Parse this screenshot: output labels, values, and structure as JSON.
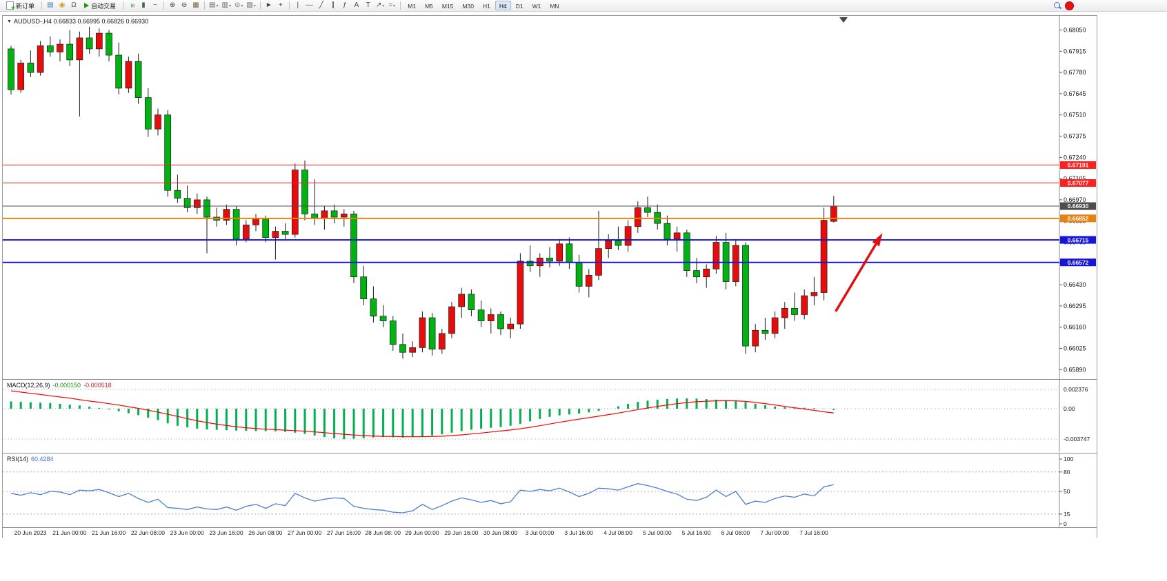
{
  "toolbar": {
    "new_order_label": "新订单",
    "auto_trading_label": "自动交易",
    "timeframes": [
      "M1",
      "M5",
      "M15",
      "M30",
      "H1",
      "H4",
      "D1",
      "W1",
      "MN"
    ],
    "active_timeframe": "H4",
    "icons_a": [
      {
        "name": "market-depth-icon",
        "glyph": "▤",
        "color": "#4a7ab5"
      },
      {
        "name": "alerts-icon",
        "glyph": "◉",
        "color": "#c9a227"
      },
      {
        "name": "headset-icon",
        "glyph": "Ω",
        "color": "#555555"
      }
    ],
    "icons_b": [
      {
        "sep": true
      },
      {
        "name": "bar-chart-mode-icon",
        "glyph": "≡",
        "rot": true,
        "color": "#3c7a3c"
      },
      {
        "name": "candlestick-mode-icon",
        "glyph": "▮",
        "color": "#3c6e3c"
      },
      {
        "name": "line-chart-mode-icon",
        "glyph": "~",
        "color": "#3c6e3c"
      },
      {
        "sep": true
      },
      {
        "name": "zoom-in-icon",
        "glyph": "⊕",
        "color": "#444444"
      },
      {
        "name": "zoom-out-icon",
        "glyph": "⊖",
        "color": "#444444"
      },
      {
        "name": "tile-windows-icon",
        "glyph": "▦",
        "color": "#7a6a3a"
      },
      {
        "sep": true
      },
      {
        "name": "new-chart-icon",
        "glyph": "▤",
        "color": "#666666",
        "dropdown": true
      },
      {
        "name": "profiles-icon",
        "glyph": "▥",
        "color": "#666666",
        "dropdown": true
      },
      {
        "name": "period-sync-icon",
        "glyph": "⊙",
        "color": "#666666",
        "dropdown": true
      },
      {
        "name": "templates-icon",
        "glyph": "▧",
        "color": "#666666",
        "dropdown": true
      },
      {
        "sep": true
      },
      {
        "name": "cursor-icon",
        "glyph": "►",
        "color": "#444444"
      },
      {
        "name": "crosshair-icon",
        "glyph": "+",
        "color": "#444444"
      },
      {
        "sep": true
      },
      {
        "name": "vertical-line-icon",
        "glyph": "|",
        "color": "#444444"
      },
      {
        "name": "horizontal-line-icon",
        "glyph": "—",
        "color": "#444444"
      },
      {
        "name": "trendline-icon",
        "glyph": "╱",
        "color": "#444444"
      },
      {
        "name": "channel-icon",
        "glyph": "∥",
        "color": "#444444"
      },
      {
        "name": "fibonacci-icon",
        "glyph": "ƒ",
        "color": "#444444"
      },
      {
        "name": "text-icon",
        "glyph": "A",
        "color": "#444444"
      },
      {
        "name": "label-icon",
        "glyph": "T",
        "color": "#444444"
      },
      {
        "name": "arrows-tool-icon",
        "glyph": "↗",
        "color": "#444444",
        "dropdown": true
      },
      {
        "name": "indicators-icon",
        "glyph": "≈",
        "color": "#2a8a2a",
        "dropdown": true
      },
      {
        "sep": true
      }
    ]
  },
  "chart_data": {
    "type": "candlestick+indicators",
    "main": {
      "title": "AUDUSD-,H4 0.66833 0.66995 0.66826 0.66930",
      "symbol": "AUDUSD",
      "timeframe": "H4",
      "ohlc_last": {
        "open": "0.66833",
        "high": "0.66995",
        "low": "0.66826",
        "close": "0.66930"
      },
      "ylim": [
        0.6583,
        0.6814
      ],
      "y_ticks": [
        "0.68050",
        "0.67915",
        "0.67780",
        "0.67645",
        "0.67510",
        "0.67375",
        "0.67240",
        "0.67105",
        "0.66970",
        "0.66835",
        "0.66700",
        "0.66565",
        "0.66430",
        "0.66295",
        "0.66160",
        "0.66025",
        "0.65890"
      ],
      "colors": {
        "bull": "#e60d0d",
        "bear": "#00b313",
        "bull_note": "chinese convention: red = up",
        "bear_note": "green = down"
      },
      "hlines": [
        {
          "price": 0.67191,
          "label": "0.67191",
          "color": "#ff2020",
          "width": 1
        },
        {
          "price": 0.67077,
          "label": "0.67077",
          "color": "#ff2020",
          "width": 1
        },
        {
          "price": 0.6693,
          "label": "0.66930",
          "color": "#4d4d4d",
          "width": 1
        },
        {
          "price": 0.66852,
          "label": "0.66852",
          "color": "#e8820e",
          "width": 2
        },
        {
          "price": 0.66715,
          "label": "0.66715",
          "color": "#1515dd",
          "width": 2
        },
        {
          "price": 0.66572,
          "label": "0.66572",
          "color": "#1515dd",
          "width": 2
        }
      ],
      "arrow": {
        "from_bar": 84.2,
        "from_price": 0.6626,
        "to_bar": 88.8,
        "to_price": 0.6674,
        "color": "#e01010"
      },
      "candles": [
        [
          0.6793,
          0.6795,
          0.6764,
          0.6767
        ],
        [
          0.6767,
          0.6786,
          0.6765,
          0.6784
        ],
        [
          0.6784,
          0.6792,
          0.6775,
          0.6778
        ],
        [
          0.6778,
          0.6798,
          0.6776,
          0.6795
        ],
        [
          0.6795,
          0.6801,
          0.6788,
          0.6791
        ],
        [
          0.6791,
          0.6799,
          0.6785,
          0.6796
        ],
        [
          0.6796,
          0.6805,
          0.6782,
          0.6786
        ],
        [
          0.6786,
          0.6804,
          0.675,
          0.68
        ],
        [
          0.68,
          0.6807,
          0.679,
          0.6793
        ],
        [
          0.6793,
          0.6806,
          0.6788,
          0.6803
        ],
        [
          0.6803,
          0.6805,
          0.6785,
          0.6789
        ],
        [
          0.6789,
          0.6797,
          0.6764,
          0.6768
        ],
        [
          0.6768,
          0.6788,
          0.6765,
          0.6785
        ],
        [
          0.6785,
          0.679,
          0.6758,
          0.6762
        ],
        [
          0.6762,
          0.6768,
          0.6737,
          0.6742
        ],
        [
          0.6742,
          0.6755,
          0.6738,
          0.6751
        ],
        [
          0.6751,
          0.6754,
          0.6699,
          0.6703
        ],
        [
          0.6703,
          0.6713,
          0.6695,
          0.6698
        ],
        [
          0.6698,
          0.6706,
          0.6689,
          0.6692
        ],
        [
          0.6692,
          0.6701,
          0.6688,
          0.6697
        ],
        [
          0.6697,
          0.6699,
          0.6663,
          0.6686
        ],
        [
          0.6686,
          0.6692,
          0.668,
          0.6684
        ],
        [
          0.6684,
          0.6694,
          0.6681,
          0.6691
        ],
        [
          0.6691,
          0.6693,
          0.6668,
          0.6672
        ],
        [
          0.6672,
          0.6684,
          0.667,
          0.6681
        ],
        [
          0.6681,
          0.6688,
          0.6677,
          0.6685
        ],
        [
          0.6685,
          0.6687,
          0.667,
          0.6673
        ],
        [
          0.6673,
          0.668,
          0.6659,
          0.6677
        ],
        [
          0.6677,
          0.6682,
          0.6672,
          0.6675
        ],
        [
          0.6675,
          0.672,
          0.6673,
          0.6716
        ],
        [
          0.6716,
          0.6722,
          0.6684,
          0.6688
        ],
        [
          0.6688,
          0.671,
          0.6681,
          0.6685
        ],
        [
          0.6685,
          0.6693,
          0.6678,
          0.669
        ],
        [
          0.669,
          0.6694,
          0.6682,
          0.6686
        ],
        [
          0.6686,
          0.6691,
          0.668,
          0.6688
        ],
        [
          0.6688,
          0.669,
          0.6644,
          0.6648
        ],
        [
          0.6648,
          0.6655,
          0.663,
          0.6634
        ],
        [
          0.6634,
          0.6642,
          0.6619,
          0.6623
        ],
        [
          0.6623,
          0.663,
          0.6616,
          0.662
        ],
        [
          0.662,
          0.6623,
          0.6601,
          0.6605
        ],
        [
          0.6605,
          0.6612,
          0.6596,
          0.66
        ],
        [
          0.66,
          0.6607,
          0.6597,
          0.6603
        ],
        [
          0.6603,
          0.6626,
          0.66,
          0.6622
        ],
        [
          0.6622,
          0.6625,
          0.6598,
          0.6602
        ],
        [
          0.6602,
          0.6615,
          0.6599,
          0.6612
        ],
        [
          0.6612,
          0.6632,
          0.6609,
          0.6629
        ],
        [
          0.6629,
          0.6641,
          0.6622,
          0.6637
        ],
        [
          0.6637,
          0.664,
          0.6623,
          0.6627
        ],
        [
          0.6627,
          0.6633,
          0.6616,
          0.662
        ],
        [
          0.662,
          0.6628,
          0.6612,
          0.6624
        ],
        [
          0.6624,
          0.6626,
          0.6611,
          0.6615
        ],
        [
          0.6615,
          0.6622,
          0.6609,
          0.6618
        ],
        [
          0.6618,
          0.6663,
          0.6615,
          0.6658
        ],
        [
          0.6658,
          0.6668,
          0.6651,
          0.6655
        ],
        [
          0.6655,
          0.6663,
          0.6648,
          0.666
        ],
        [
          0.666,
          0.6667,
          0.6654,
          0.6658
        ],
        [
          0.6658,
          0.6672,
          0.6655,
          0.6669
        ],
        [
          0.6669,
          0.6673,
          0.6653,
          0.6657
        ],
        [
          0.6657,
          0.6662,
          0.6638,
          0.6642
        ],
        [
          0.6642,
          0.6653,
          0.6635,
          0.6649
        ],
        [
          0.6649,
          0.669,
          0.6646,
          0.6666
        ],
        [
          0.6666,
          0.6675,
          0.666,
          0.6671
        ],
        [
          0.6671,
          0.668,
          0.6665,
          0.6668
        ],
        [
          0.6668,
          0.6684,
          0.6664,
          0.668
        ],
        [
          0.668,
          0.6696,
          0.6676,
          0.6692
        ],
        [
          0.6692,
          0.6699,
          0.6686,
          0.6689
        ],
        [
          0.6689,
          0.6694,
          0.6678,
          0.6682
        ],
        [
          0.6682,
          0.6687,
          0.6668,
          0.6672
        ],
        [
          0.6672,
          0.668,
          0.6664,
          0.6676
        ],
        [
          0.6676,
          0.6678,
          0.6648,
          0.6652
        ],
        [
          0.6652,
          0.666,
          0.6644,
          0.6648
        ],
        [
          0.6648,
          0.6656,
          0.6641,
          0.6653
        ],
        [
          0.6653,
          0.6674,
          0.665,
          0.667
        ],
        [
          0.667,
          0.6676,
          0.664,
          0.6645
        ],
        [
          0.6645,
          0.6672,
          0.6642,
          0.6668
        ],
        [
          0.6668,
          0.667,
          0.6599,
          0.6604
        ],
        [
          0.6604,
          0.6618,
          0.66,
          0.6614
        ],
        [
          0.6614,
          0.6622,
          0.6608,
          0.6612
        ],
        [
          0.6612,
          0.6626,
          0.6609,
          0.6622
        ],
        [
          0.6622,
          0.6632,
          0.6615,
          0.6628
        ],
        [
          0.6628,
          0.6638,
          0.662,
          0.6624
        ],
        [
          0.6624,
          0.664,
          0.6621,
          0.6636
        ],
        [
          0.6636,
          0.6648,
          0.663,
          0.6638
        ],
        [
          0.6638,
          0.6692,
          0.6633,
          0.6684
        ],
        [
          0.66833,
          0.66995,
          0.66826,
          0.6693
        ]
      ]
    },
    "macd": {
      "label": "MACD(12,26,9)",
      "main_value": "-0.000150",
      "signal_value": "-0.000518",
      "y_ticks": [
        "0.002376",
        "0.00",
        "-0.003747"
      ],
      "ylim": [
        -0.00543,
        0.00357
      ],
      "hist_color": "#00b050",
      "signal_color": "#ff0000",
      "histogram": [
        0.0009,
        0.00085,
        0.0008,
        0.00075,
        0.0007,
        0.0006,
        0.0005,
        0.0004,
        0.00025,
        0.0001,
        -0.0001,
        -0.0003,
        -0.00055,
        -0.0008,
        -0.0011,
        -0.0014,
        -0.0018,
        -0.0021,
        -0.0023,
        -0.00245,
        -0.00255,
        -0.0026,
        -0.00265,
        -0.0027,
        -0.00272,
        -0.00274,
        -0.00276,
        -0.00278,
        -0.00285,
        -0.00295,
        -0.0031,
        -0.0033,
        -0.0035,
        -0.00365,
        -0.003747,
        -0.0037,
        -0.00362,
        -0.00355,
        -0.0035,
        -0.00352,
        -0.00355,
        -0.0035,
        -0.0034,
        -0.0033,
        -0.00315,
        -0.00295,
        -0.00275,
        -0.00258,
        -0.00245,
        -0.00235,
        -0.00225,
        -0.0021,
        -0.00185,
        -0.00155,
        -0.00125,
        -0.001,
        -0.00082,
        -0.0007,
        -0.0006,
        -0.00045,
        -0.00025,
        0.0,
        0.0003,
        0.0006,
        0.00085,
        0.001,
        0.00112,
        0.0012,
        0.00126,
        0.00128,
        0.00124,
        0.00118,
        0.00112,
        0.00106,
        0.00098,
        0.00082,
        0.00062,
        0.00042,
        0.00028,
        0.0002,
        0.00016,
        0.00012,
        8e-05,
        2e-05,
        -0.00015
      ],
      "signal": [
        0.0022,
        0.00205,
        0.0019,
        0.00175,
        0.0016,
        0.00145,
        0.0013,
        0.00112,
        0.00095,
        0.0008,
        0.00062,
        0.00045,
        0.00025,
        5e-05,
        -0.00018,
        -0.00042,
        -0.00068,
        -0.00095,
        -0.00122,
        -0.00148,
        -0.0017,
        -0.0019,
        -0.00207,
        -0.00222,
        -0.00234,
        -0.00244,
        -0.00252,
        -0.00258,
        -0.00264,
        -0.0027,
        -0.00277,
        -0.00285,
        -0.00295,
        -0.00305,
        -0.00315,
        -0.00324,
        -0.00331,
        -0.00336,
        -0.0034,
        -0.00342,
        -0.00344,
        -0.00345,
        -0.00344,
        -0.00342,
        -0.00338,
        -0.00331,
        -0.00322,
        -0.00311,
        -0.00299,
        -0.00287,
        -0.00275,
        -0.00262,
        -0.00247,
        -0.00229,
        -0.00209,
        -0.00188,
        -0.00167,
        -0.00147,
        -0.00128,
        -0.0011,
        -0.00092,
        -0.00073,
        -0.00053,
        -0.00032,
        -0.00011,
        9e-05,
        0.00028,
        0.00046,
        0.00062,
        0.00076,
        0.00086,
        0.00093,
        0.00097,
        0.00099,
        0.00097,
        0.0009,
        0.00078,
        0.00063,
        0.00046,
        0.00028,
        0.00012,
        -4e-05,
        -0.0002,
        -0.00038,
        -0.000518
      ]
    },
    "rsi": {
      "label": "RSI(14)",
      "value": "60.4284",
      "line_color": "#4a7fd0",
      "y_ticks": [
        100,
        80,
        50,
        15,
        0
      ],
      "levels": [
        80,
        50,
        15
      ],
      "ylim": [
        0,
        100
      ],
      "values": [
        47,
        44,
        48,
        45,
        50,
        49,
        45,
        52,
        51,
        53,
        48,
        42,
        47,
        39,
        33,
        38,
        25,
        24,
        22,
        26,
        23,
        22,
        26,
        21,
        27,
        30,
        24,
        31,
        28,
        47,
        40,
        35,
        38,
        40,
        39,
        27,
        24,
        22,
        21,
        18,
        17,
        20,
        30,
        22,
        28,
        35,
        40,
        37,
        33,
        36,
        31,
        34,
        52,
        50,
        53,
        51,
        55,
        49,
        42,
        47,
        55,
        54,
        52,
        57,
        62,
        59,
        55,
        50,
        46,
        38,
        36,
        41,
        52,
        42,
        50,
        30,
        35,
        33,
        39,
        43,
        41,
        46,
        43,
        57,
        60.4284
      ]
    },
    "x_labels": [
      "20 Jun 2023",
      "21 Jun 00:00",
      "21 Jun 16:00",
      "22 Jun 08:00",
      "23 Jun 00:00",
      "23 Jun 16:00",
      "26 Jun 08:00",
      "27 Jun 00:00",
      "27 Jun 16:00",
      "28 Jun 08: 00",
      "29 Jun 00:00",
      "29 Jun 16:00",
      "30 Jun 08:00",
      "3 Jul 00:00",
      "3 Jul 16:00",
      "4 Jul 08:00",
      "5 Jul 00:00",
      "5 Jul 16:00",
      "6 Jul 08:00",
      "7 Jul 00:00",
      "7 Jul 16:00"
    ]
  }
}
